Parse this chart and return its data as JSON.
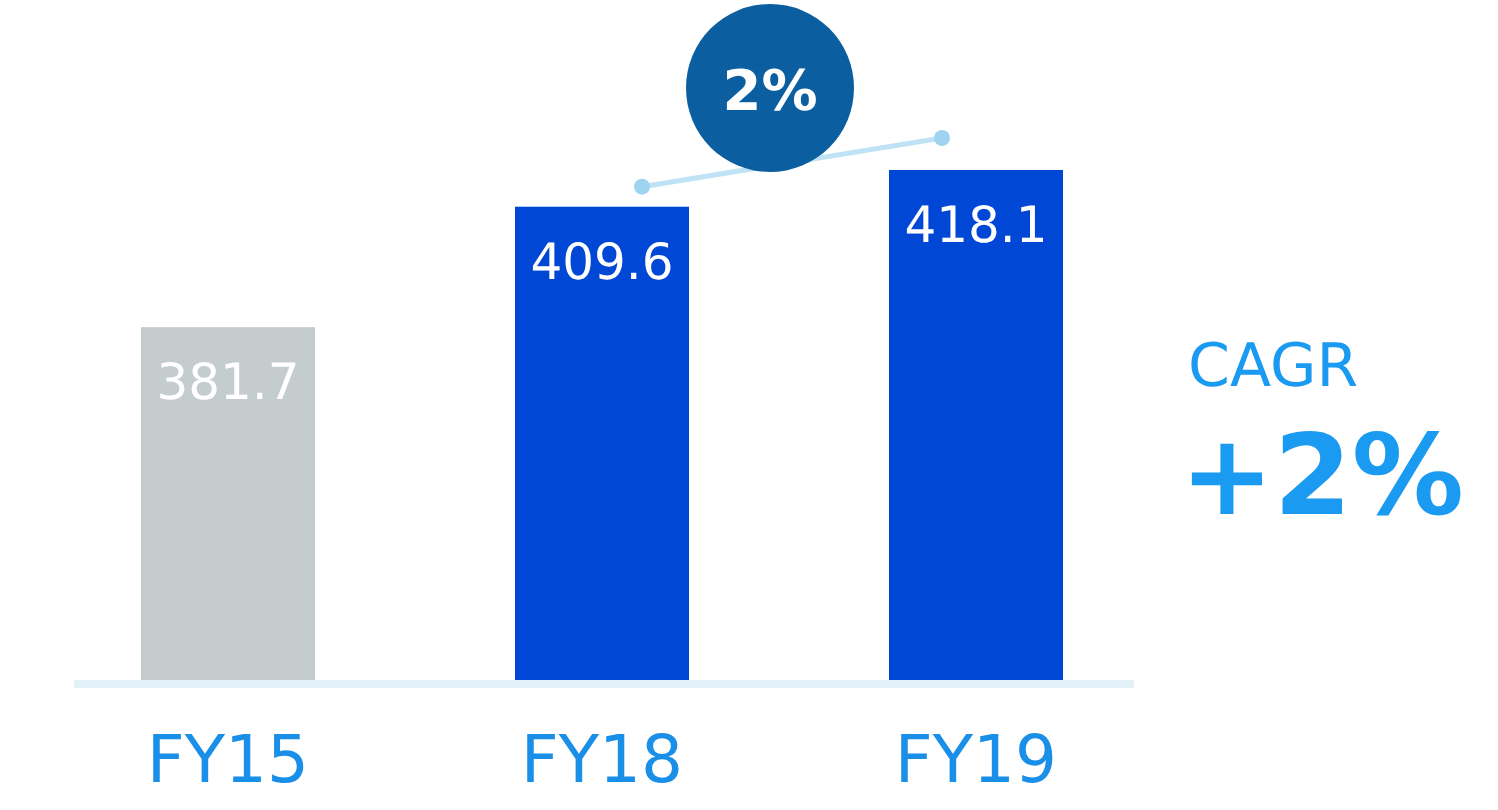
{
  "chart_data": {
    "type": "bar",
    "categories": [
      "FY15",
      "FY18",
      "FY19"
    ],
    "values": [
      381.7,
      409.6,
      418.1
    ],
    "colors": [
      "#c5cccd",
      "#0047d6",
      "#0047d6"
    ],
    "ylim": [
      300,
      418.1
    ],
    "tick_labels": "x",
    "data_labels": true,
    "annotations": [
      "2%",
      "CAGR",
      "+2%"
    ]
  }
}
